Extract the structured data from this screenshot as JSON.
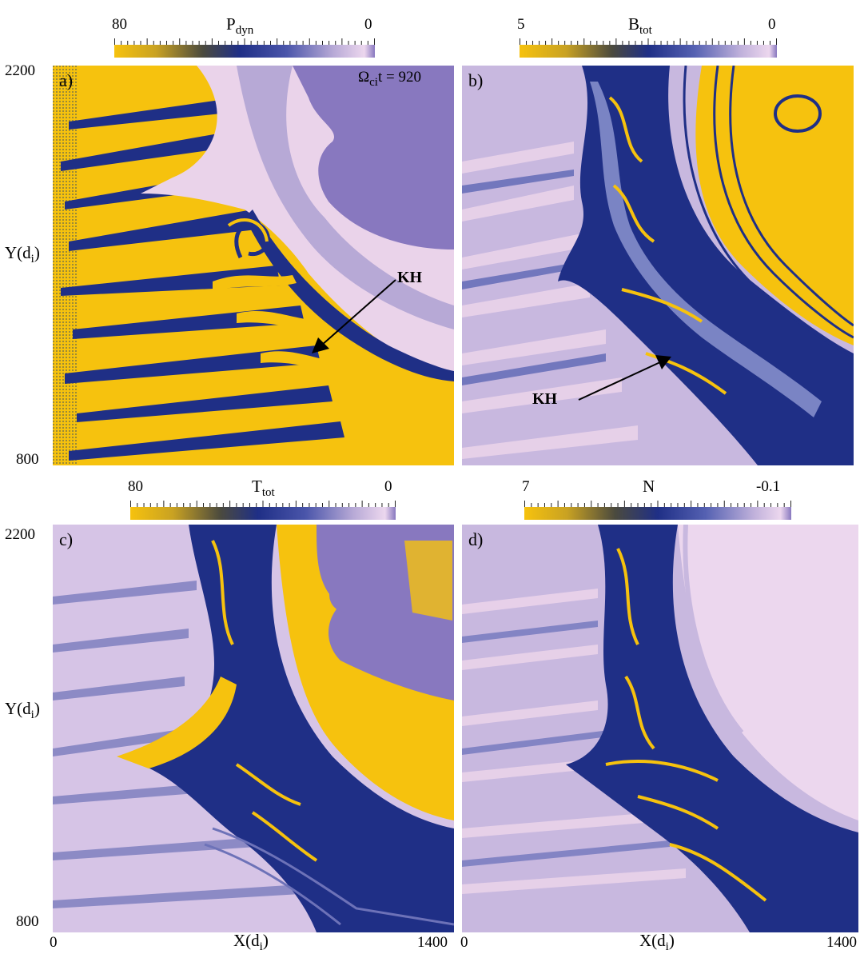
{
  "panels": [
    {
      "id": "a",
      "letter": "a)",
      "colorbar": {
        "name": "P",
        "sub": "dyn",
        "max": "80",
        "min": "0"
      }
    },
    {
      "id": "b",
      "letter": "b)",
      "colorbar": {
        "name": "B",
        "sub": "tot",
        "max": "5",
        "min": "0"
      }
    },
    {
      "id": "c",
      "letter": "c)",
      "colorbar": {
        "name": "T",
        "sub": "tot",
        "max": "80",
        "min": "0"
      }
    },
    {
      "id": "d",
      "letter": "d)",
      "colorbar": {
        "name": "N",
        "sub": "",
        "max": "7",
        "min": "-0.1"
      }
    }
  ],
  "time_label": {
    "omega": "Ω",
    "sub": "ci",
    "rest": "t = 920"
  },
  "annotations": {
    "kh_a": "KH",
    "kh_b": "KH"
  },
  "y_axis": {
    "name": "Y(d",
    "sub": "i",
    "close": ")",
    "top": "2200",
    "bottom": "800"
  },
  "x_axis": {
    "name": "X(d",
    "sub": "i",
    "close": ")",
    "left": "0",
    "right": "1400"
  },
  "colors": {
    "yellow": "#f6c20e",
    "navy": "#1f2f86",
    "lavender": "#8878bf",
    "pale": "#ead3ea",
    "olive": "#6e6420"
  }
}
